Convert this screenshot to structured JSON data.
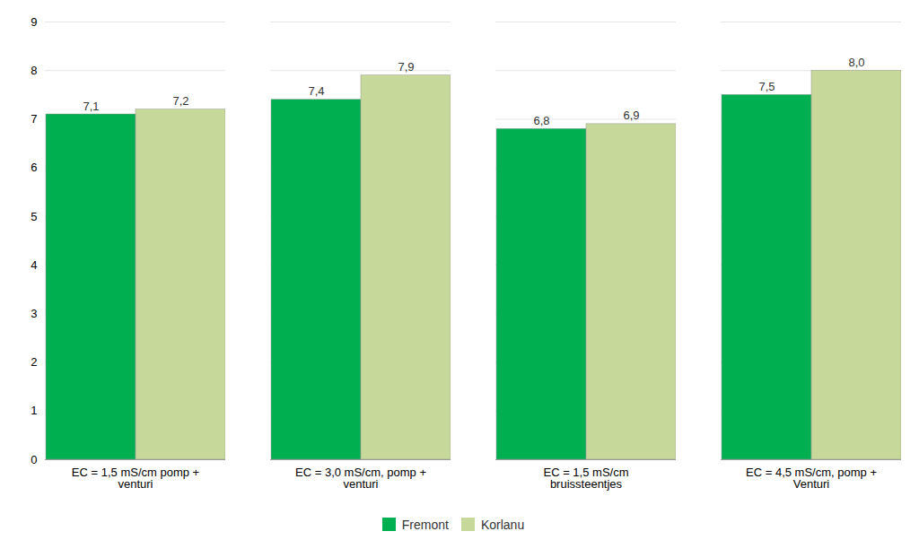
{
  "chart_data": {
    "type": "bar",
    "categories": [
      "EC = 1,5 mS/cm pomp +\nventuri",
      "EC = 3,0 mS/cm, pomp +\nventuri",
      "EC = 1,5 mS/cm\nbruissteentjes",
      "EC = 4,5 mS/cm, pomp +\nVenturi"
    ],
    "series": [
      {
        "name": "Fremont",
        "color": "#00b050",
        "values": [
          7.1,
          7.4,
          6.8,
          7.5
        ],
        "value_labels": [
          "7,1",
          "7,4",
          "6,8",
          "7,5"
        ]
      },
      {
        "name": "Korlanu",
        "color": "#c6d89a",
        "values": [
          7.2,
          7.9,
          6.9,
          8.0
        ],
        "value_labels": [
          "7,2",
          "7,9",
          "6,9",
          "8,0"
        ]
      }
    ],
    "ylim": [
      0,
      9
    ],
    "yticks": [
      0,
      1,
      2,
      3,
      4,
      5,
      6,
      7,
      8,
      9
    ],
    "grid": true,
    "legend": "bottom",
    "data_labels": true
  }
}
